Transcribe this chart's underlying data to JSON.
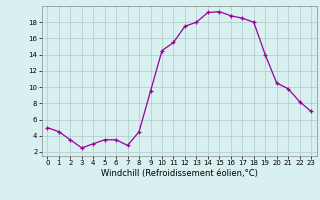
{
  "x": [
    0,
    1,
    2,
    3,
    4,
    5,
    6,
    7,
    8,
    9,
    10,
    11,
    12,
    13,
    14,
    15,
    16,
    17,
    18,
    19,
    20,
    21,
    22,
    23
  ],
  "y": [
    5.0,
    4.5,
    3.5,
    2.5,
    3.0,
    3.5,
    3.5,
    2.8,
    4.5,
    9.5,
    14.5,
    15.5,
    17.5,
    18.0,
    19.2,
    19.3,
    18.8,
    18.5,
    18.0,
    14.0,
    10.5,
    9.8,
    8.2,
    7.0
  ],
  "line_color": "#990099",
  "marker": "+",
  "marker_size": 3,
  "xlim": [
    -0.5,
    23.5
  ],
  "ylim": [
    1.5,
    20
  ],
  "yticks": [
    2,
    4,
    6,
    8,
    10,
    12,
    14,
    16,
    18
  ],
  "xticks": [
    0,
    1,
    2,
    3,
    4,
    5,
    6,
    7,
    8,
    9,
    10,
    11,
    12,
    13,
    14,
    15,
    16,
    17,
    18,
    19,
    20,
    21,
    22,
    23
  ],
  "xlabel": "Windchill (Refroidissement éolien,°C)",
  "bg_color": "#d8f0f0",
  "grid_color": "#b0c8c8"
}
